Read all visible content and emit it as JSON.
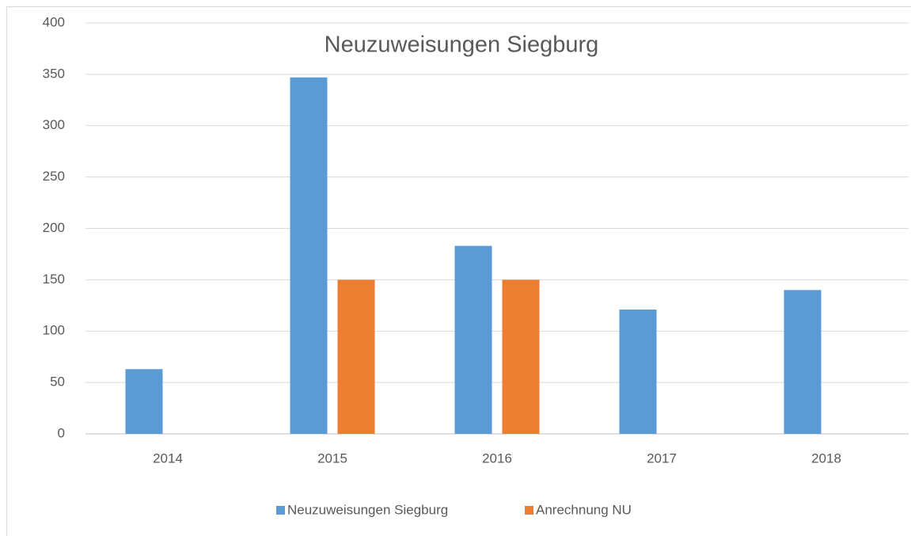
{
  "chart_data": {
    "type": "bar",
    "title": "Neuzuweisungen Siegburg",
    "categories": [
      "2014",
      "2015",
      "2016",
      "2017",
      "2018"
    ],
    "series": [
      {
        "name": "Neuzuweisungen Siegburg",
        "color": "#5b9bd5",
        "values": [
          63,
          347,
          183,
          121,
          140
        ]
      },
      {
        "name": "Anrechnung NU",
        "color": "#ed7d31",
        "values": [
          null,
          150,
          150,
          null,
          null
        ]
      }
    ],
    "ylim": [
      0,
      400
    ],
    "yticks": [
      0,
      50,
      100,
      150,
      200,
      250,
      300,
      350,
      400
    ],
    "grid": true,
    "legend": "bottom"
  }
}
